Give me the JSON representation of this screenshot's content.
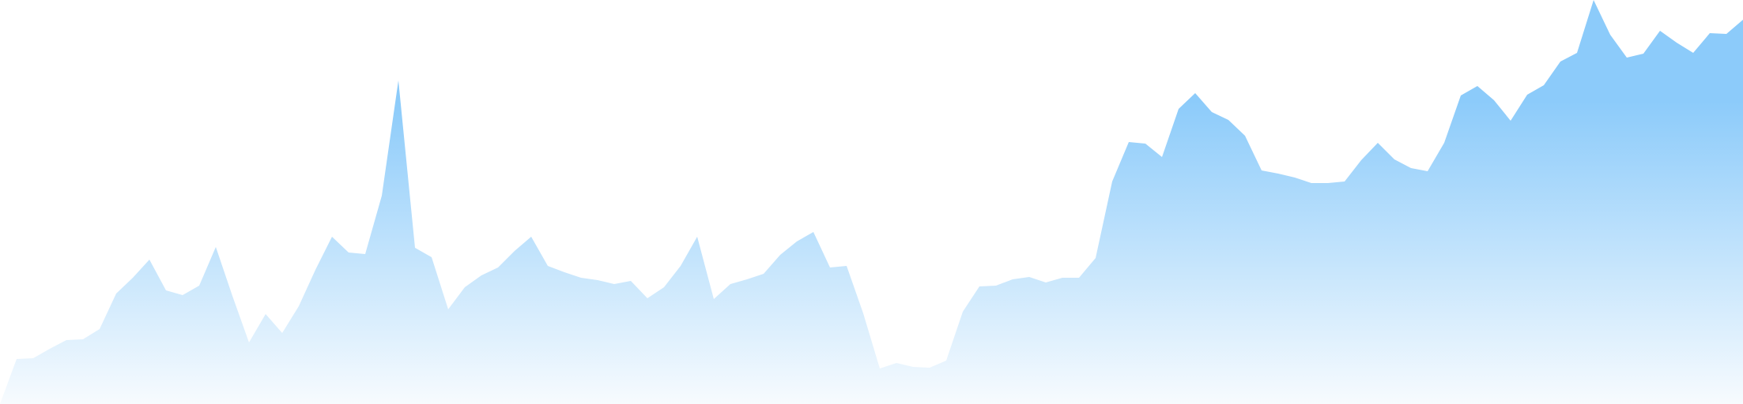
{
  "chart_data": {
    "type": "area",
    "title": "",
    "xlabel": "",
    "ylabel": "",
    "grid": false,
    "legend": "none",
    "axes_visible": false,
    "ylim": [
      0,
      512
    ],
    "x": [
      0,
      1,
      2,
      3,
      4,
      5,
      6,
      7,
      8,
      9,
      10,
      11,
      12,
      13,
      14,
      15,
      16,
      17,
      18,
      19,
      20,
      21,
      22,
      23,
      24,
      25,
      26,
      27,
      28,
      29,
      30,
      31,
      32,
      33,
      34,
      35,
      36,
      37,
      38,
      39,
      40,
      41,
      42,
      43,
      44,
      45,
      46,
      47,
      48,
      49,
      50,
      51,
      52,
      53,
      54,
      55,
      56,
      57,
      58,
      59,
      60,
      61,
      62,
      63,
      64,
      65,
      66,
      67,
      68,
      69,
      70,
      71,
      72,
      73,
      74,
      75,
      76,
      77,
      78,
      79,
      80,
      81,
      82,
      83,
      84,
      85,
      86,
      87,
      88,
      89,
      90,
      91,
      92,
      93,
      94,
      95,
      96,
      97,
      98,
      99,
      100,
      101,
      102,
      103,
      104,
      105
    ],
    "series": [
      {
        "values": [
          0,
          57,
          58,
          70,
          81,
          82,
          95,
          140,
          160,
          183,
          144,
          138,
          150,
          199,
          137,
          78,
          114,
          90,
          124,
          170,
          212,
          192,
          190,
          264,
          410,
          198,
          186,
          120,
          148,
          163,
          173,
          194,
          212,
          175,
          167,
          160,
          157,
          152,
          156,
          134,
          148,
          175,
          212,
          133,
          152,
          158,
          165,
          189,
          206,
          218,
          173,
          175,
          115,
          45,
          52,
          47,
          46,
          55,
          117,
          149,
          150,
          158,
          161,
          154,
          160,
          160,
          185,
          282,
          332,
          330,
          313,
          374,
          394,
          370,
          360,
          340,
          296,
          292,
          287,
          280,
          280,
          282,
          309,
          331,
          310,
          299,
          295,
          331,
          391,
          403,
          385,
          359,
          392,
          404,
          434,
          445,
          512,
          468,
          439,
          444,
          473,
          458,
          445,
          470,
          469,
          487
        ],
        "color": "#8ccbfa"
      }
    ],
    "gradient": {
      "top_color": "#8ccbfa",
      "bottom_color": "#f7fbfe"
    }
  }
}
